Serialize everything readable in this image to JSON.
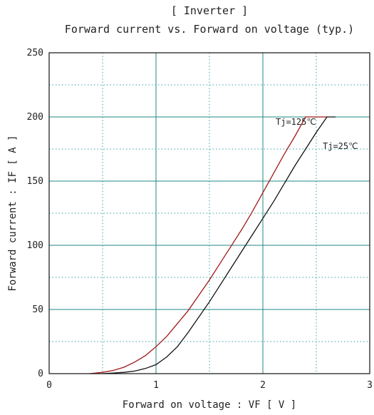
{
  "chart_data": {
    "type": "line",
    "title": "[ Inverter ]",
    "subtitle": "Forward current  vs.  Forward on voltage  (typ.)",
    "xlabel": "Forward on voltage  :  VF  [ V ]",
    "ylabel": "Forward current  :  IF  [ A ]",
    "xlim": [
      0,
      3
    ],
    "ylim": [
      0,
      250
    ],
    "xticks": [
      0,
      1,
      2,
      3
    ],
    "yticks": [
      0,
      50,
      100,
      150,
      200,
      250
    ],
    "grid": true,
    "series": [
      {
        "name": "Tj=125℃",
        "color": "#a01818",
        "x": [
          0.38,
          0.5,
          0.6,
          0.7,
          0.8,
          0.9,
          1.0,
          1.1,
          1.2,
          1.3,
          1.4,
          1.5,
          1.6,
          1.7,
          1.8,
          1.9,
          2.0,
          2.1,
          2.2,
          2.3,
          2.4,
          2.5,
          2.6
        ],
        "y": [
          0,
          1,
          2.5,
          5,
          9,
          14,
          21,
          29,
          39,
          49,
          61,
          73,
          86,
          99,
          112,
          126,
          141,
          156,
          171,
          185,
          200,
          213,
          226
        ]
      },
      {
        "name": "Tj=25℃",
        "color": "#111111",
        "x": [
          0.5,
          0.6,
          0.7,
          0.8,
          0.9,
          1.0,
          1.1,
          1.2,
          1.3,
          1.4,
          1.5,
          1.6,
          1.7,
          1.8,
          1.9,
          2.0,
          2.1,
          2.2,
          2.3,
          2.4,
          2.5,
          2.6,
          2.68
        ],
        "y": [
          0,
          0.5,
          1,
          2,
          4,
          7,
          13,
          21,
          32,
          44,
          56,
          69,
          82,
          95,
          108,
          121,
          134,
          148,
          162,
          175,
          188,
          200,
          211
        ]
      }
    ]
  },
  "colors": {
    "axis": "#111111",
    "grid_major": "#1f8a80",
    "grid_minor": "#33a0a8"
  }
}
